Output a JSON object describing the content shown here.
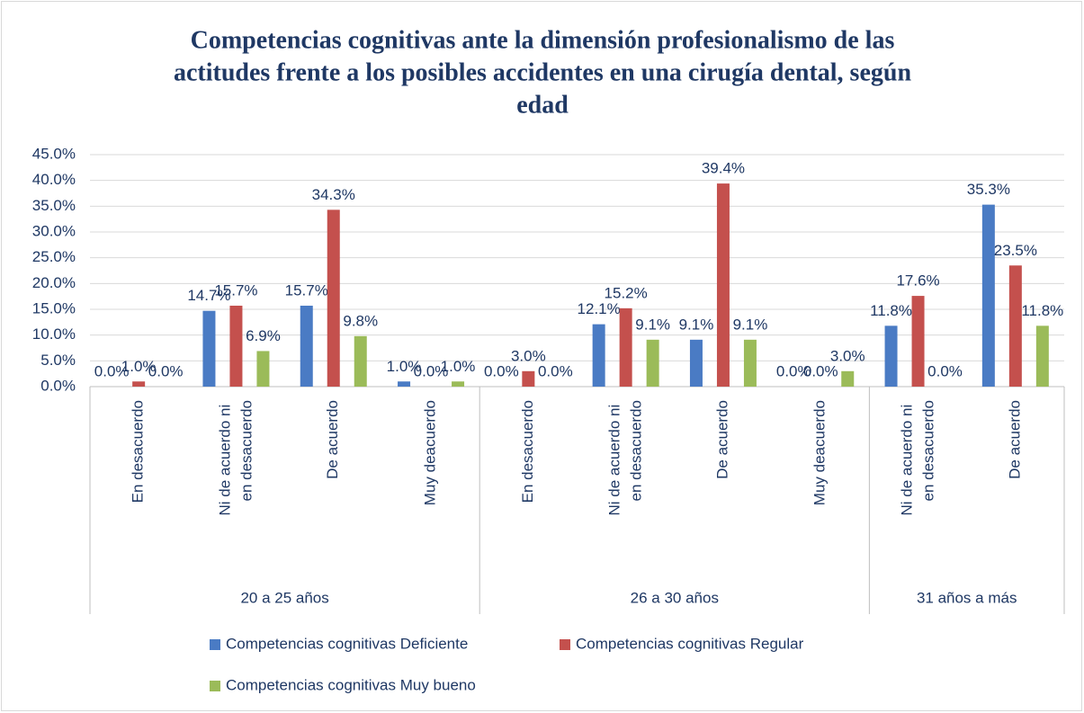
{
  "chart_data": {
    "type": "bar",
    "title": [
      "Competencias cognitivas ante la dimensión profesionalismo de las",
      "actitudes frente a los posibles accidentes en una cirugía dental, según",
      "edad"
    ],
    "groups": [
      {
        "name": "20 a 25 años",
        "categories": [
          "En desacuerdo",
          "Ni de acuerdo ni en desacuerdo",
          "De acuerdo",
          "Muy deacuerdo"
        ]
      },
      {
        "name": "26 a 30 años",
        "categories": [
          "En desacuerdo",
          "Ni de acuerdo ni en desacuerdo",
          "De acuerdo",
          "Muy deacuerdo"
        ]
      },
      {
        "name": "31 años a más",
        "categories": [
          "Ni de acuerdo ni en desacuerdo",
          "De acuerdo"
        ]
      }
    ],
    "series": [
      {
        "name": "Competencias cognitivas Deficiente",
        "color": "#4a7bc4",
        "values": [
          0.0,
          14.7,
          15.7,
          1.0,
          0.0,
          12.1,
          9.1,
          0.0,
          11.8,
          35.3
        ],
        "value_labels": [
          "0.0%",
          "14.7%",
          "15.7%",
          "1.0%",
          "0.0%",
          "12.1%",
          "9.1%",
          "0.0%",
          "11.8%",
          "35.3%"
        ]
      },
      {
        "name": "Competencias cognitivas Regular",
        "color": "#c4504d",
        "values": [
          1.0,
          15.7,
          34.3,
          0.0,
          3.0,
          15.2,
          39.4,
          0.0,
          17.6,
          23.5
        ],
        "value_labels": [
          "1.0%",
          "15.7%",
          "34.3%",
          "0.0%",
          "3.0%",
          "15.2%",
          "39.4%",
          "0.0%",
          "17.6%",
          "23.5%"
        ]
      },
      {
        "name": "Competencias cognitivas Muy bueno",
        "color": "#9bbb59",
        "values": [
          0.0,
          6.9,
          9.8,
          1.0,
          0.0,
          9.1,
          9.1,
          3.0,
          0.0,
          11.8
        ],
        "value_labels": [
          "0.0%",
          "6.9%",
          "9.8%",
          "1.0%",
          "0.0%",
          "9.1%",
          "9.1%",
          "3.0%",
          "0.0%",
          "11.8%"
        ]
      }
    ],
    "ylim": [
      0,
      45
    ],
    "yticks": [
      {
        "value": 0,
        "label": "0.0%"
      },
      {
        "value": 5,
        "label": "5.0%"
      },
      {
        "value": 10,
        "label": "10.0%"
      },
      {
        "value": 15,
        "label": "15.0%"
      },
      {
        "value": 20,
        "label": "20.0%"
      },
      {
        "value": 25,
        "label": "25.0%"
      },
      {
        "value": 30,
        "label": "30.0%"
      },
      {
        "value": 35,
        "label": "35.0%"
      },
      {
        "value": 40,
        "label": "40.0%"
      },
      {
        "value": 45,
        "label": "45.0%"
      }
    ],
    "grid": true,
    "legend": "bottom"
  }
}
